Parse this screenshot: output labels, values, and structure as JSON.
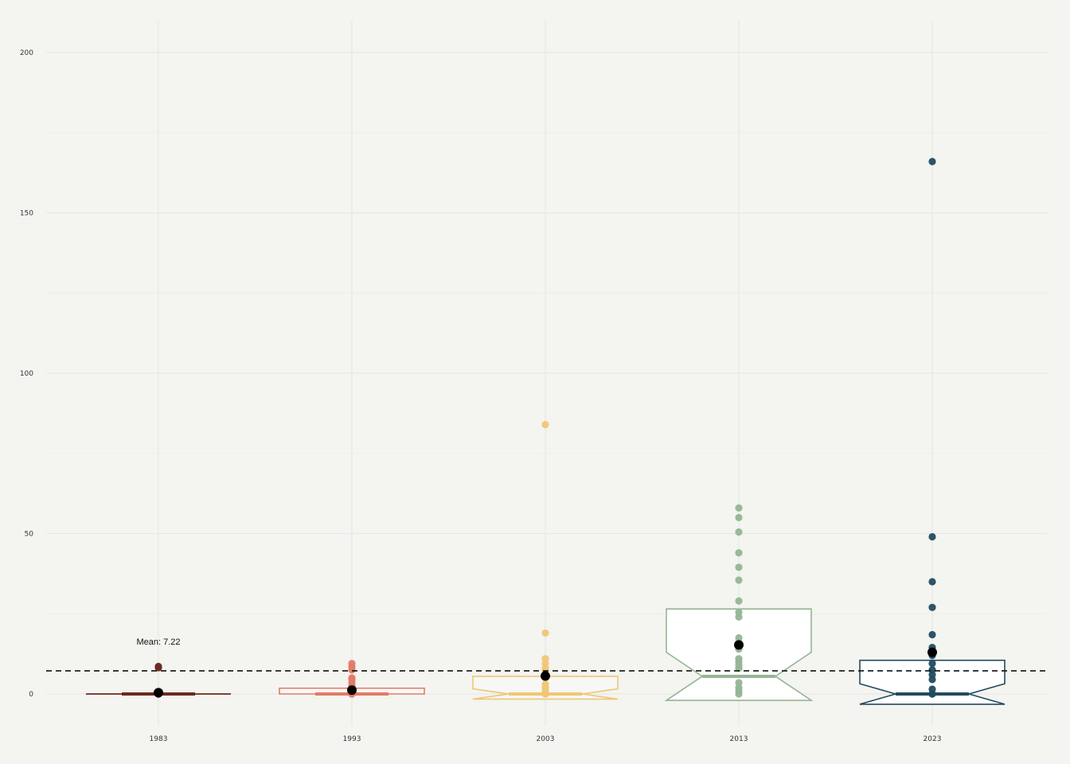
{
  "chart_data": {
    "type": "boxplot",
    "title": "",
    "xlabel": "",
    "ylabel": "",
    "ylim": [
      -10,
      210
    ],
    "yticks": [
      0,
      50,
      100,
      150,
      200
    ],
    "categories": [
      "1983",
      "1993",
      "2003",
      "2013",
      "2023"
    ],
    "grid": true,
    "notched": true,
    "mean_line": {
      "value": 7.22,
      "label": "Mean: 7.22",
      "style": "dashed"
    },
    "series": [
      {
        "name": "1983",
        "color": "#6b2a1e",
        "fill": "#6b2a1e",
        "box": {
          "q1": 0,
          "median": 0,
          "q3": 0,
          "notch_low": 0,
          "notch_high": 0
        },
        "mean": 0.4,
        "points": [
          0,
          0,
          0,
          0.3,
          0.6,
          8.2,
          8.6
        ]
      },
      {
        "name": "1993",
        "color": "#e07b67",
        "fill": "#f7f7f5",
        "box": {
          "q1": 0,
          "median": 0,
          "q3": 1.8,
          "notch_low": 0,
          "notch_high": 0
        },
        "mean": 1.2,
        "points": [
          0,
          0,
          0.5,
          1,
          2,
          2.5,
          3.5,
          4.5,
          5,
          7.5,
          8.5,
          9.5
        ]
      },
      {
        "name": "2003",
        "color": "#f0c674",
        "fill": "#f7f7f5",
        "box": {
          "q1": 0,
          "median": 0,
          "q3": 5.5,
          "notch_low": -1.6,
          "notch_high": 1.6
        },
        "mean": 5.6,
        "points": [
          0,
          0,
          1,
          2,
          3,
          5,
          7,
          8,
          9.5,
          11,
          19,
          84
        ]
      },
      {
        "name": "2013",
        "color": "#94b594",
        "fill": "#ffffff",
        "box": {
          "q1": 0,
          "median": 5.5,
          "q3": 26.5,
          "notch_low": -2,
          "notch_high": 13
        },
        "mean": 15.3,
        "points": [
          0,
          1,
          2,
          3.5,
          8,
          9,
          10,
          11,
          14,
          16,
          17.5,
          24,
          25.5,
          29,
          35.5,
          39.5,
          44,
          50.5,
          55,
          58
        ]
      },
      {
        "name": "2023",
        "color": "#224b5e",
        "fill": "#ffffff",
        "box": {
          "q1": 0,
          "median": 0,
          "q3": 10.5,
          "notch_low": -3.2,
          "notch_high": 3.2
        },
        "mean": 13,
        "points": [
          0,
          0,
          1.5,
          4.5,
          6,
          7.5,
          9.5,
          12,
          14.5,
          18.5,
          27,
          35,
          49,
          166
        ]
      }
    ]
  }
}
